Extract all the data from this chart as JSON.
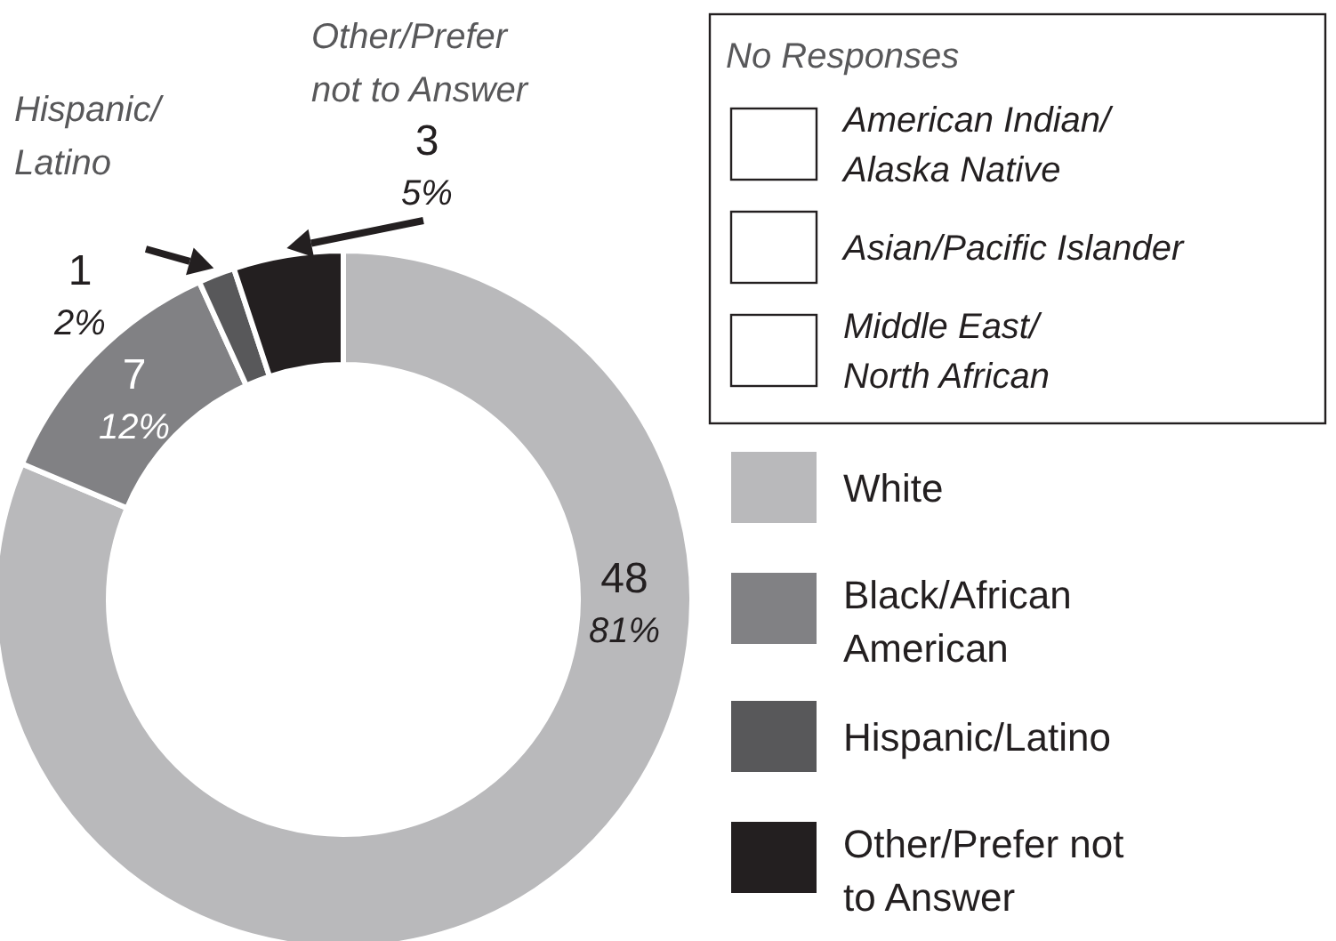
{
  "chart_data": {
    "type": "donut",
    "legend_title": "No Responses",
    "legend": "right",
    "categories": [
      "White",
      "Black/African American",
      "Hispanic/Latino",
      "Other/Prefer not to Answer",
      "American Indian/Alaska Native",
      "Asian/Pacific Islander",
      "Middle East/North African"
    ],
    "values": [
      48,
      7,
      1,
      3,
      0,
      0,
      0
    ],
    "value_labels": [
      "48\n81%",
      "7\n12%",
      "1\n2%",
      "3\n5%",
      null,
      null,
      null
    ],
    "colors": [
      "#b9b9bb",
      "#818184",
      "#58585a",
      "#231f20",
      "#ffffff",
      "#ffffff",
      "#ffffff"
    ]
  }
}
